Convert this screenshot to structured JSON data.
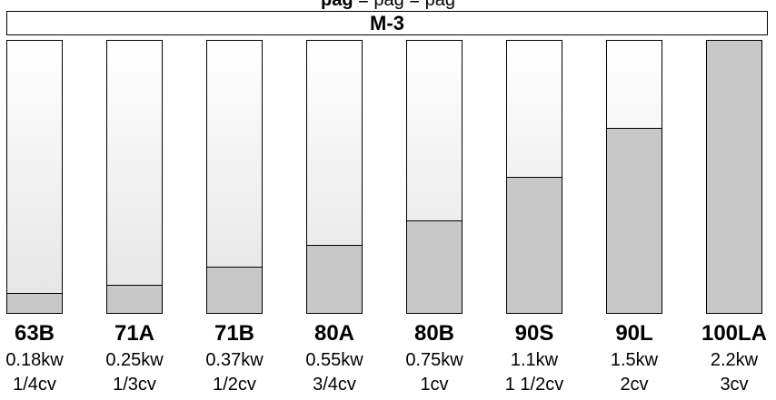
{
  "header": {
    "title": "M-3"
  },
  "top_note": {
    "bold": "pag",
    "rest": "= pag          = pag"
  },
  "chart_data": {
    "type": "bar",
    "title": "M-3",
    "categories": [
      "63B",
      "71A",
      "71B",
      "80A",
      "80B",
      "90S",
      "90L",
      "100LA"
    ],
    "power_kw": [
      "0.18kw",
      "0.25kw",
      "0.37kw",
      "0.55kw",
      "0.75kw",
      "1.1kw",
      "1.5kw",
      "2.2kw"
    ],
    "power_cv": [
      "1/4cv",
      "1/3cv",
      "1/2cv",
      "3/4cv",
      "1cv",
      "1 1/2cv",
      "2cv",
      "3cv"
    ],
    "values": [
      7,
      10,
      16.5,
      24.5,
      33.5,
      49.5,
      67.5,
      100
    ],
    "ylim": [
      0,
      100
    ],
    "fill_color": "#c8c8c8",
    "empty_color": "#eeeeee"
  }
}
